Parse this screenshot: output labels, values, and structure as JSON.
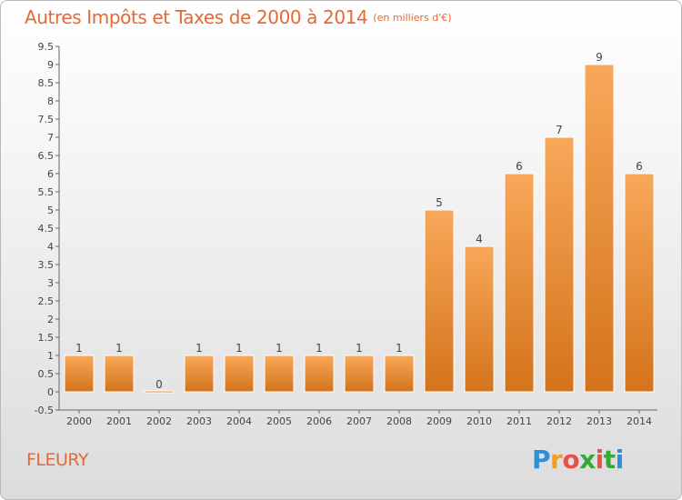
{
  "chart_data": {
    "type": "bar",
    "title": "Autres Impôts et Taxes de 2000 à 2014",
    "subtitle": "(en milliers d'€)",
    "categories": [
      "2000",
      "2001",
      "2002",
      "2003",
      "2004",
      "2005",
      "2006",
      "2007",
      "2008",
      "2009",
      "2010",
      "2011",
      "2012",
      "2013",
      "2014"
    ],
    "values": [
      1,
      1,
      0,
      1,
      1,
      1,
      1,
      1,
      1,
      5,
      4,
      6,
      7,
      9,
      6
    ],
    "value_labels": [
      "1",
      "1",
      "0",
      "1",
      "1",
      "1",
      "1",
      "1",
      "1",
      "5",
      "4",
      "6",
      "7",
      "9",
      "6"
    ],
    "yticks": [
      "-0.5",
      "0",
      "0.5",
      "1",
      "1.5",
      "2",
      "2.5",
      "3",
      "3.5",
      "4",
      "4.5",
      "5",
      "5.5",
      "6",
      "6.5",
      "7",
      "7.5",
      "8",
      "8.5",
      "9",
      "9.5"
    ],
    "ylim": [
      -0.5,
      9.5
    ],
    "grid": false,
    "bar_color": "#f08a2a"
  },
  "footer": {
    "city": "FLEURY",
    "logo": {
      "letters": [
        "P",
        "r",
        "o",
        "x",
        "i",
        "t",
        "i"
      ],
      "colors": [
        "#2d8fd5",
        "#f0a020",
        "#e8504a",
        "#35a83a",
        "#e8504a",
        "#35a83a",
        "#2d8fd5"
      ]
    }
  }
}
